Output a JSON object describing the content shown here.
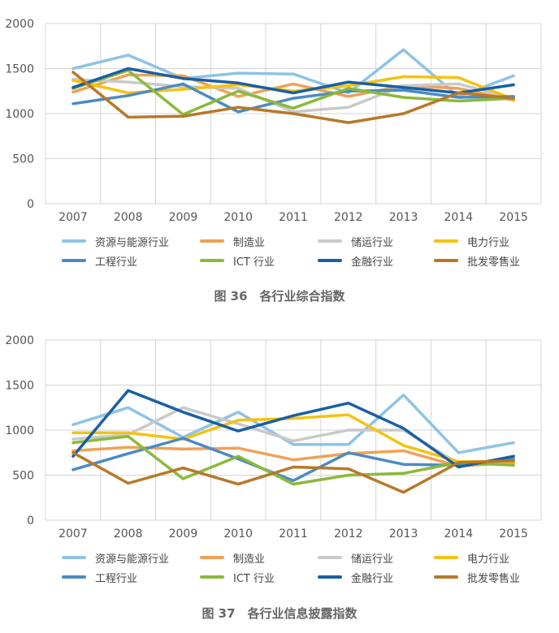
{
  "chart_data": [
    {
      "type": "line",
      "title": "图 36　各行业综合指数",
      "x": [
        "2007",
        "2008",
        "2009",
        "2010",
        "2011",
        "2012",
        "2013",
        "2014",
        "2015"
      ],
      "ylim": [
        0,
        2000
      ],
      "yticks": [
        0,
        500,
        1000,
        1500,
        2000
      ],
      "grid": true,
      "legend_position": "bottom",
      "series": [
        {
          "name": "资源与能源行业",
          "color": "#8ec3e6",
          "values": [
            1500,
            1650,
            1390,
            1450,
            1440,
            1230,
            1710,
            1190,
            1420
          ]
        },
        {
          "name": "制造业",
          "color": "#f0a155",
          "values": [
            1240,
            1430,
            1420,
            1190,
            1330,
            1190,
            1310,
            1280,
            1150
          ]
        },
        {
          "name": "储运行业",
          "color": "#c9c9c9",
          "values": [
            1380,
            1350,
            1300,
            1280,
            1020,
            1070,
            1310,
            1330,
            1170
          ]
        },
        {
          "name": "电力行业",
          "color": "#f5c211",
          "values": [
            1370,
            1230,
            1270,
            1320,
            1250,
            1310,
            1410,
            1400,
            1160
          ]
        },
        {
          "name": "工程行业",
          "color": "#4a8bc4",
          "values": [
            1110,
            1200,
            1330,
            1020,
            1170,
            1250,
            1260,
            1180,
            1190
          ]
        },
        {
          "name": "ICT 行业",
          "color": "#8bb93a",
          "values": [
            1280,
            1480,
            990,
            1250,
            1060,
            1280,
            1180,
            1140,
            1170
          ]
        },
        {
          "name": "金融行业",
          "color": "#1a5fa3",
          "values": [
            1290,
            1500,
            1390,
            1340,
            1230,
            1350,
            1290,
            1230,
            1320
          ]
        },
        {
          "name": "批发零售业",
          "color": "#b87828",
          "values": [
            1460,
            960,
            970,
            1070,
            1000,
            900,
            1000,
            1230,
            1170
          ]
        }
      ]
    },
    {
      "type": "line",
      "title": "图 37　各行业信息披露指数",
      "x": [
        "2007",
        "2008",
        "2009",
        "2010",
        "2011",
        "2012",
        "2013",
        "2014",
        "2015"
      ],
      "ylim": [
        0,
        2000
      ],
      "yticks": [
        0,
        500,
        1000,
        1500,
        2000
      ],
      "grid": true,
      "legend_position": "bottom",
      "series": [
        {
          "name": "资源与能源行业",
          "color": "#8ec3e6",
          "values": [
            1060,
            1250,
            920,
            1200,
            840,
            840,
            1390,
            750,
            860
          ]
        },
        {
          "name": "制造业",
          "color": "#f0a155",
          "values": [
            770,
            810,
            790,
            800,
            670,
            740,
            770,
            600,
            640
          ]
        },
        {
          "name": "储运行业",
          "color": "#c9c9c9",
          "values": [
            900,
            950,
            1250,
            1070,
            880,
            1000,
            1000,
            630,
            650
          ]
        },
        {
          "name": "电力行业",
          "color": "#f5c211",
          "values": [
            970,
            970,
            900,
            1110,
            1130,
            1170,
            830,
            650,
            650
          ]
        },
        {
          "name": "工程行业",
          "color": "#4a8bc4",
          "values": [
            560,
            740,
            910,
            680,
            440,
            750,
            620,
            610,
            680
          ]
        },
        {
          "name": "ICT 行业",
          "color": "#8bb93a",
          "values": [
            860,
            930,
            460,
            710,
            400,
            500,
            520,
            640,
            610
          ]
        },
        {
          "name": "金融行业",
          "color": "#1a5fa3",
          "values": [
            710,
            1440,
            1200,
            990,
            1160,
            1300,
            1020,
            590,
            710
          ]
        },
        {
          "name": "批发零售业",
          "color": "#b87828",
          "values": [
            750,
            410,
            580,
            400,
            590,
            570,
            310,
            640,
            660
          ]
        }
      ]
    }
  ]
}
